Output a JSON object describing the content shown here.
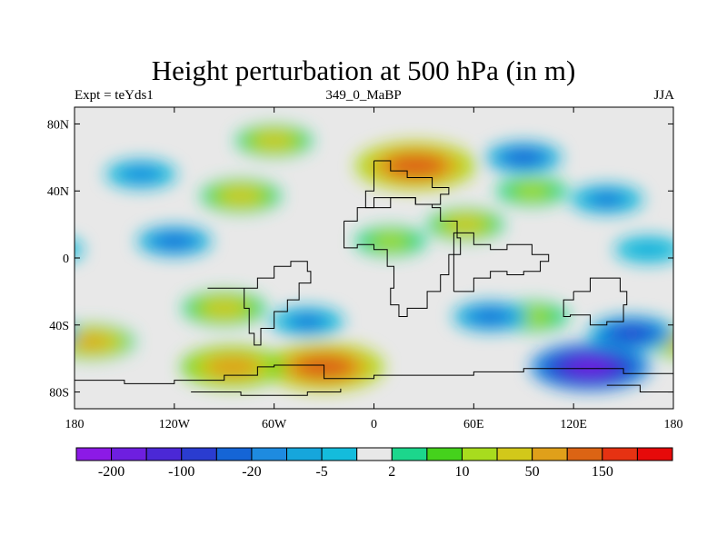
{
  "chart_data": {
    "type": "contour-map",
    "title": "Height perturbation at 500 hPa (in m)",
    "left_label": "Expt = teYds1",
    "center_label": "349_0_MaBP",
    "right_label": "JJA",
    "x_ticks": [
      "180",
      "120W",
      "60W",
      "0",
      "60E",
      "120E",
      "180"
    ],
    "y_ticks": [
      "80N",
      "40N",
      "0",
      "40S",
      "80S"
    ],
    "xlim": [
      -180,
      180
    ],
    "ylim": [
      -90,
      90
    ],
    "colorbar": {
      "labels": [
        "-200",
        "-100",
        "-20",
        "-5",
        "2",
        "10",
        "50",
        "150"
      ],
      "colors": [
        "#8C1AE6",
        "#6E1FE0",
        "#4B28D6",
        "#2A3CD0",
        "#1565D6",
        "#1E8BE0",
        "#16A6DC",
        "#14BCDC",
        "#E8E8E8",
        "#1CD68C",
        "#45D21C",
        "#A8DC1E",
        "#D2C81A",
        "#E0A01A",
        "#DC6414",
        "#E63212",
        "#E60A0A"
      ]
    },
    "anomaly_centers": [
      {
        "lon": 25,
        "lat": 55,
        "value": 150
      },
      {
        "lon": -30,
        "lat": -65,
        "value": 150
      },
      {
        "lon": -85,
        "lat": -65,
        "value": 100
      },
      {
        "lon": -170,
        "lat": -50,
        "value": 60
      },
      {
        "lon": -90,
        "lat": -30,
        "value": 50
      },
      {
        "lon": -80,
        "lat": 37,
        "value": 40
      },
      {
        "lon": -60,
        "lat": 70,
        "value": 30
      },
      {
        "lon": 10,
        "lat": 10,
        "value": 15
      },
      {
        "lon": 55,
        "lat": 20,
        "value": 30
      },
      {
        "lon": 95,
        "lat": -35,
        "value": 20
      },
      {
        "lon": 95,
        "lat": 40,
        "value": 15
      },
      {
        "lon": -120,
        "lat": 10,
        "value": -25
      },
      {
        "lon": -140,
        "lat": 50,
        "value": -15
      },
      {
        "lon": 90,
        "lat": 60,
        "value": -30
      },
      {
        "lon": 140,
        "lat": 35,
        "value": -20
      },
      {
        "lon": 130,
        "lat": -65,
        "value": -150
      },
      {
        "lon": 155,
        "lat": -45,
        "value": -60
      },
      {
        "lon": 70,
        "lat": -35,
        "value": -25
      },
      {
        "lon": -40,
        "lat": -38,
        "value": -20
      },
      {
        "lon": 165,
        "lat": 5,
        "value": -5
      }
    ]
  }
}
